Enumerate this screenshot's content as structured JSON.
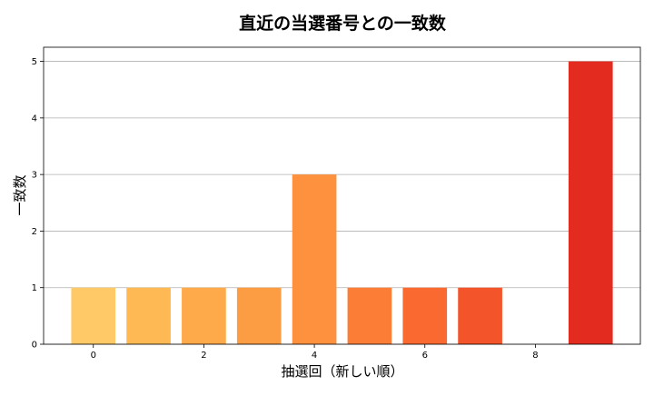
{
  "chart_data": {
    "type": "bar",
    "title": "直近の当選番号との一致数",
    "xlabel": "抽選回（新しい順）",
    "ylabel": "一致数",
    "x": [
      0,
      1,
      2,
      3,
      4,
      5,
      6,
      7,
      8,
      9
    ],
    "values": [
      1,
      1,
      1,
      1,
      3,
      1,
      1,
      1,
      0,
      5
    ],
    "bar_colors": [
      "#fec966",
      "#feb954",
      "#feaa4a",
      "#fd9d43",
      "#fd913e",
      "#fc7d36",
      "#f96930",
      "#f4542a",
      "#ec3d22",
      "#e32b1f"
    ],
    "xticks": [
      0,
      2,
      4,
      6,
      8
    ],
    "yticks": [
      0,
      1,
      2,
      3,
      4,
      5
    ],
    "xlim": [
      -0.9,
      9.9
    ],
    "ylim": [
      0,
      5.25
    ],
    "grid": "y"
  }
}
